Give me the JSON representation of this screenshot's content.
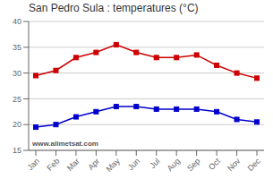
{
  "chart_data": {
    "type": "line",
    "title": "San Pedro Sula : temperatures (°C)",
    "categories": [
      "Jan",
      "Feb",
      "Mar",
      "Apr",
      "May",
      "Jun",
      "Jul",
      "Aug",
      "Sep",
      "Oct",
      "Nov",
      "Dec"
    ],
    "series": [
      {
        "color": "#cc0000",
        "values": [
          29.5,
          30.5,
          33.0,
          34.0,
          35.5,
          34.0,
          33.0,
          33.0,
          33.5,
          31.5,
          30.0,
          29.0
        ]
      },
      {
        "color": "#0000cc",
        "values": [
          19.5,
          20.0,
          21.5,
          22.5,
          23.5,
          23.5,
          23.0,
          23.0,
          23.0,
          22.5,
          21.0,
          20.5
        ]
      }
    ],
    "marker": "square",
    "ylim": [
      15,
      40
    ],
    "yticks": [
      15,
      20,
      25,
      30,
      35,
      40
    ],
    "grid": "y",
    "annotations": [
      "www.allmetsat.com"
    ]
  }
}
